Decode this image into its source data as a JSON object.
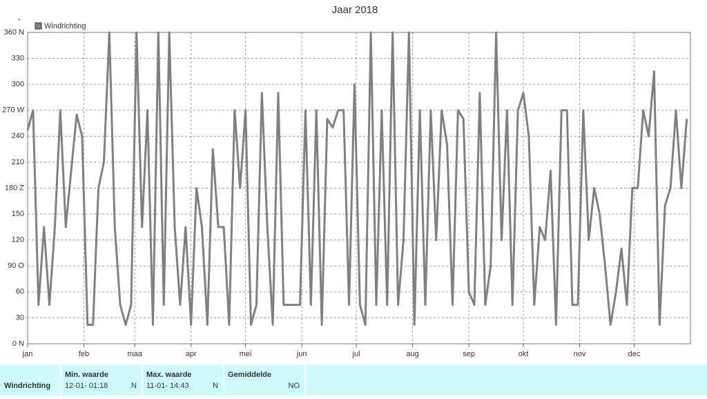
{
  "chart_data": {
    "type": "line",
    "title": "Jaar 2018",
    "y_unit": "°",
    "x": [
      0,
      3,
      6,
      9,
      12,
      15,
      18,
      21,
      24,
      27,
      30,
      33,
      36,
      39,
      42,
      45,
      48,
      51,
      54,
      57,
      60,
      63,
      66,
      69,
      72,
      75,
      78,
      81,
      84,
      87,
      90,
      93,
      96,
      99,
      102,
      105,
      108,
      111,
      114,
      117,
      120,
      123,
      126,
      129,
      132,
      135,
      138,
      141,
      144,
      147,
      150,
      153,
      156,
      159,
      162,
      165,
      168,
      171,
      174,
      177,
      180,
      183,
      186,
      189,
      192,
      195,
      198,
      201,
      204,
      207,
      210,
      213,
      216,
      219,
      222,
      225,
      228,
      231,
      234,
      237,
      240,
      243,
      246,
      249,
      252,
      255,
      258,
      261,
      264,
      267,
      270,
      273,
      276,
      279,
      282,
      285,
      288,
      291,
      294,
      297,
      300,
      303,
      306,
      309,
      312,
      315,
      318,
      321,
      324,
      327,
      330,
      333,
      336,
      339,
      342,
      345,
      348,
      351,
      354,
      357,
      360,
      363
    ],
    "series": [
      {
        "name": "Windrichting",
        "color": "#808080",
        "values": [
          247,
          270,
          45,
          135,
          45,
          135,
          270,
          135,
          200,
          265,
          240,
          22,
          22,
          180,
          210,
          360,
          135,
          45,
          22,
          45,
          360,
          135,
          270,
          22,
          360,
          45,
          360,
          135,
          45,
          135,
          22,
          180,
          135,
          22,
          225,
          135,
          135,
          22,
          270,
          180,
          270,
          22,
          45,
          290,
          135,
          22,
          290,
          45,
          45,
          45,
          45,
          270,
          45,
          270,
          22,
          260,
          250,
          270,
          270,
          45,
          300,
          45,
          22,
          360,
          45,
          270,
          45,
          360,
          45,
          120,
          360,
          22,
          270,
          45,
          270,
          120,
          270,
          230,
          45,
          270,
          260,
          60,
          45,
          290,
          45,
          90,
          360,
          120,
          270,
          45,
          270,
          290,
          240,
          45,
          135,
          120,
          200,
          22,
          270,
          270,
          45,
          45,
          270,
          120,
          180,
          150,
          90,
          22,
          60,
          110,
          45,
          180,
          180,
          270,
          240,
          315,
          22,
          160,
          180,
          270,
          180,
          260
        ]
      }
    ],
    "xlim": [
      0,
      365
    ],
    "xticks": [
      {
        "value": 0,
        "label": "jan"
      },
      {
        "value": 31,
        "label": "feb"
      },
      {
        "value": 59,
        "label": "maa"
      },
      {
        "value": 90,
        "label": "apr"
      },
      {
        "value": 120,
        "label": "mei"
      },
      {
        "value": 151,
        "label": "jun"
      },
      {
        "value": 181,
        "label": "jul"
      },
      {
        "value": 212,
        "label": "aug"
      },
      {
        "value": 243,
        "label": "sep"
      },
      {
        "value": 273,
        "label": "okt"
      },
      {
        "value": 304,
        "label": "nov"
      },
      {
        "value": 334,
        "label": "dec"
      }
    ],
    "ylim": [
      0,
      360
    ],
    "yticks": [
      {
        "value": 0,
        "label": "0 N"
      },
      30,
      60,
      {
        "value": 90,
        "label": "90 O"
      },
      120,
      150,
      {
        "value": 180,
        "label": "180 Z"
      },
      210,
      240,
      {
        "value": 270,
        "label": "270 W"
      },
      300,
      330,
      {
        "value": 360,
        "label": "360 N"
      }
    ],
    "grid": true
  },
  "table": {
    "header": [
      "Min. waarde",
      "Max. waarde",
      "Gemiddelde"
    ],
    "rows": [
      [
        "Windrichting",
        "12-01- 01:18",
        "N",
        "11-01- 14:43",
        "N",
        "NO"
      ]
    ]
  }
}
